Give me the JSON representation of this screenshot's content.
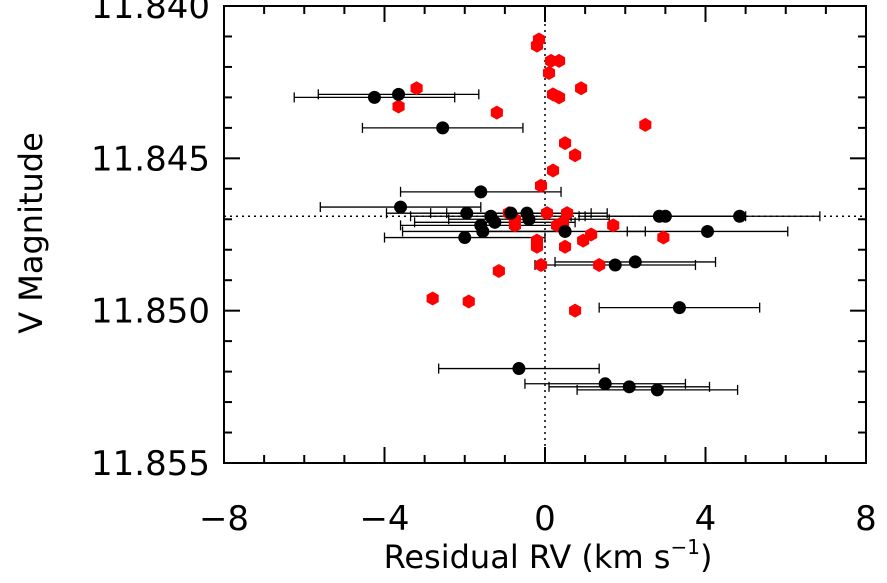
{
  "chart_data": {
    "type": "scatter",
    "title": "",
    "xlabel": "Residual RV (km s",
    "xlabel_sup": "−1",
    "xlabel_close": ")",
    "ylabel": "V Magnitude",
    "xlim": [
      -8,
      8
    ],
    "ylim": [
      11.855,
      11.84
    ],
    "y_inverted": true,
    "grid": false,
    "x_ticks": [
      -8,
      -4,
      0,
      4,
      8
    ],
    "x_tick_labels": [
      "−8",
      "−4",
      "0",
      "4",
      "8"
    ],
    "y_ticks": [
      11.84,
      11.845,
      11.85,
      11.855
    ],
    "y_tick_labels": [
      "11.840",
      "11.845",
      "11.850",
      "11.855"
    ],
    "reference_lines": {
      "x": 0,
      "y": 11.8469
    },
    "colors": {
      "red_series": "#ff0000",
      "black_series": "#000000",
      "axis": "#000000"
    },
    "series": [
      {
        "marker": "hexagon",
        "color": "#ff0000",
        "points": [
          {
            "x": -0.15,
            "y": 11.8411
          },
          {
            "x": -0.2,
            "y": 11.8413
          },
          {
            "x": 0.15,
            "y": 11.8418
          },
          {
            "x": 0.35,
            "y": 11.8418
          },
          {
            "x": 0.1,
            "y": 11.8422
          },
          {
            "x": -3.2,
            "y": 11.8427
          },
          {
            "x": 0.9,
            "y": 11.8427
          },
          {
            "x": 0.2,
            "y": 11.8429
          },
          {
            "x": 0.35,
            "y": 11.843
          },
          {
            "x": -3.65,
            "y": 11.8433
          },
          {
            "x": -1.2,
            "y": 11.8435
          },
          {
            "x": 2.5,
            "y": 11.8439
          },
          {
            "x": 0.5,
            "y": 11.8445
          },
          {
            "x": 0.75,
            "y": 11.8449
          },
          {
            "x": 0.2,
            "y": 11.8454
          },
          {
            "x": -0.1,
            "y": 11.8459
          },
          {
            "x": 0.55,
            "y": 11.8468
          },
          {
            "x": -0.9,
            "y": 11.8468
          },
          {
            "x": 0.05,
            "y": 11.8468
          },
          {
            "x": -0.75,
            "y": 11.847
          },
          {
            "x": 0.45,
            "y": 11.8471
          },
          {
            "x": 1.7,
            "y": 11.8472
          },
          {
            "x": -0.75,
            "y": 11.8472
          },
          {
            "x": 0.3,
            "y": 11.8472
          },
          {
            "x": 1.15,
            "y": 11.8475
          },
          {
            "x": 2.95,
            "y": 11.8476
          },
          {
            "x": 0.95,
            "y": 11.8477
          },
          {
            "x": -0.2,
            "y": 11.8477
          },
          {
            "x": -0.2,
            "y": 11.8479
          },
          {
            "x": 0.5,
            "y": 11.8479
          },
          {
            "x": -0.1,
            "y": 11.8485
          },
          {
            "x": 1.35,
            "y": 11.8485
          },
          {
            "x": -1.15,
            "y": 11.8487
          },
          {
            "x": -2.8,
            "y": 11.8496
          },
          {
            "x": -1.9,
            "y": 11.8497
          },
          {
            "x": 0.75,
            "y": 11.85
          }
        ]
      },
      {
        "marker": "circle",
        "color": "#000000",
        "points": [
          {
            "x": -3.65,
            "y": 11.8429,
            "xerr": 2.0
          },
          {
            "x": -4.25,
            "y": 11.843,
            "xerr": 2.0
          },
          {
            "x": -2.55,
            "y": 11.844,
            "xerr": 2.0
          },
          {
            "x": -1.6,
            "y": 11.8461,
            "xerr": 2.0
          },
          {
            "x": -3.6,
            "y": 11.8466,
            "xerr": 2.0
          },
          {
            "x": -1.95,
            "y": 11.8468,
            "xerr": 2.0
          },
          {
            "x": -1.35,
            "y": 11.8469,
            "xerr": 2.0
          },
          {
            "x": -0.85,
            "y": 11.8468,
            "xerr": 2.0
          },
          {
            "x": -0.45,
            "y": 11.8468,
            "xerr": 2.0
          },
          {
            "x": -1.25,
            "y": 11.8471,
            "xerr": 2.0
          },
          {
            "x": -0.4,
            "y": 11.847,
            "xerr": 2.0
          },
          {
            "x": 2.85,
            "y": 11.8469,
            "xerr": 2.0
          },
          {
            "x": 3.0,
            "y": 11.8469,
            "xerr": 2.0
          },
          {
            "x": 4.85,
            "y": 11.8469,
            "xerr": 2.0
          },
          {
            "x": -1.6,
            "y": 11.8472,
            "xerr": 2.0
          },
          {
            "x": -1.55,
            "y": 11.8474,
            "xerr": 2.0
          },
          {
            "x": 0.5,
            "y": 11.8474,
            "xerr": 2.0
          },
          {
            "x": 4.05,
            "y": 11.8474,
            "xerr": 2.0
          },
          {
            "x": -2.0,
            "y": 11.8476,
            "xerr": 2.0
          },
          {
            "x": 2.25,
            "y": 11.8484,
            "xerr": 2.0
          },
          {
            "x": 1.75,
            "y": 11.8485,
            "xerr": 2.0
          },
          {
            "x": 3.35,
            "y": 11.8499,
            "xerr": 2.0
          },
          {
            "x": -0.65,
            "y": 11.8519,
            "xerr": 2.0
          },
          {
            "x": 1.5,
            "y": 11.8524,
            "xerr": 2.0
          },
          {
            "x": 2.1,
            "y": 11.8525,
            "xerr": 2.0
          },
          {
            "x": 2.8,
            "y": 11.8526,
            "xerr": 2.0
          }
        ]
      }
    ]
  }
}
